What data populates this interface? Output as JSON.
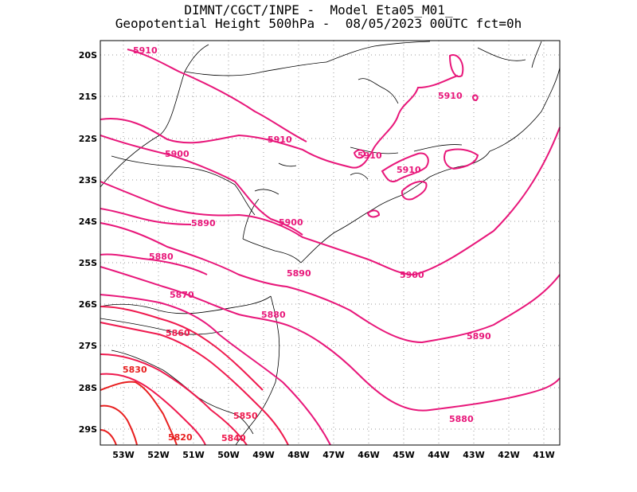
{
  "title": {
    "line1": "DIMNT/CGCT/INPE -  Model Eta05_M01_",
    "line2": "Geopotential Height 500hPa -  08/05/2023 00UTC fct=0h"
  },
  "axes": {
    "lat_labels": [
      "20S",
      "21S",
      "22S",
      "23S",
      "24S",
      "25S",
      "26S",
      "27S",
      "28S",
      "29S"
    ],
    "lon_labels": [
      "53W",
      "52W",
      "51W",
      "50W",
      "49W",
      "48W",
      "47W",
      "46W",
      "45W",
      "44W",
      "43W",
      "42W",
      "41W"
    ]
  },
  "contours": [
    {
      "value": 5910,
      "color": "#e8177a",
      "labels": [
        "5910",
        "5910",
        "5910",
        "5910",
        "5910"
      ]
    },
    {
      "value": 5900,
      "color": "#e8177a",
      "labels": [
        "5900",
        "5900",
        "5900"
      ]
    },
    {
      "value": 5890,
      "color": "#e8177a",
      "labels": [
        "5890",
        "5890",
        "5890"
      ]
    },
    {
      "value": 5880,
      "color": "#e8177a",
      "labels": [
        "5880",
        "5880",
        "5880"
      ]
    },
    {
      "value": 5870,
      "color": "#e8177a",
      "labels": [
        "5870"
      ]
    },
    {
      "value": 5860,
      "color": "#ef1a4e",
      "labels": [
        "5860"
      ]
    },
    {
      "value": 5850,
      "color": "#ef1a4e",
      "labels": [
        "5850"
      ]
    },
    {
      "value": 5840,
      "color": "#ef1a4e",
      "labels": [
        "5840"
      ]
    },
    {
      "value": 5830,
      "color": "#e81f1f",
      "labels": [
        "5830"
      ]
    },
    {
      "value": 5820,
      "color": "#e81f1f",
      "labels": [
        "5820"
      ]
    }
  ],
  "colors": {
    "frame": "#000000",
    "grid": "#9a9a9a",
    "coast": "#000000"
  }
}
